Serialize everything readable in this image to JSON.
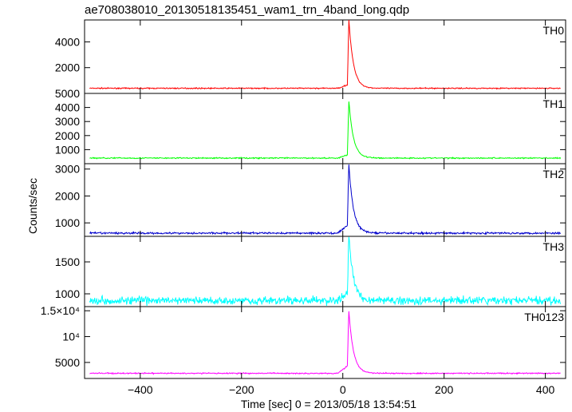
{
  "chart_data": {
    "type": "line",
    "title": "ae708038010_20130518135451_wam1_trn_4band_long.qdp",
    "xlabel": "Time [sec] 0 = 2013/05/18 13:54:51",
    "ylabel": "Counts/sec",
    "xlim": [
      -510,
      440
    ],
    "x_ticks": [
      {
        "value": -400,
        "label": "−400"
      },
      {
        "value": -200,
        "label": "−200"
      },
      {
        "value": 0,
        "label": "0"
      },
      {
        "value": 200,
        "label": "200"
      },
      {
        "value": 400,
        "label": "400"
      }
    ],
    "grid": false,
    "panels": [
      {
        "label": "TH0",
        "color": "#ff0000",
        "ylim": [
          0,
          5700
        ],
        "baseline": 400,
        "peak": 5700,
        "precursor": 700,
        "noise": 30,
        "y_ticks": [
          {
            "value": 2000,
            "label": "2000"
          },
          {
            "value": 4000,
            "label": "4000"
          }
        ]
      },
      {
        "label": "TH1",
        "color": "#00ff00",
        "ylim": [
          0,
          5000
        ],
        "baseline": 400,
        "peak": 4450,
        "precursor": 650,
        "noise": 30,
        "y_ticks": [
          {
            "value": 1000,
            "label": "1000"
          },
          {
            "value": 2000,
            "label": "2000"
          },
          {
            "value": 3000,
            "label": "3000"
          },
          {
            "value": 4000,
            "label": "4000"
          },
          {
            "value": 5000,
            "label": "5000"
          }
        ]
      },
      {
        "label": "TH2",
        "color": "#0000cc",
        "ylim": [
          500,
          3200
        ],
        "baseline": 620,
        "peak": 3150,
        "precursor": 950,
        "noise": 25,
        "y_ticks": [
          {
            "value": 1000,
            "label": "1000"
          },
          {
            "value": 2000,
            "label": "2000"
          },
          {
            "value": 3000,
            "label": "3000"
          }
        ]
      },
      {
        "label": "TH3",
        "color": "#00ffff",
        "ylim": [
          800,
          1900
        ],
        "baseline": 895,
        "peak": 1900,
        "precursor": 1020,
        "noise": 45,
        "y_ticks": [
          {
            "value": 1000,
            "label": "1000"
          },
          {
            "value": 1500,
            "label": "1500"
          }
        ]
      },
      {
        "label": "TH0123",
        "color": "#ff00ff",
        "ylim": [
          1900,
          15800
        ],
        "baseline": 2900,
        "peak": 14900,
        "precursor": 4500,
        "noise": 80,
        "y_ticks": [
          {
            "value": 5000,
            "label": "5000"
          },
          {
            "value": 10000,
            "label": "10⁴"
          },
          {
            "value": 15000,
            "label": "1.5×10⁴"
          }
        ]
      }
    ],
    "burst": {
      "time": 12,
      "rise": 3,
      "decay": 9
    }
  }
}
